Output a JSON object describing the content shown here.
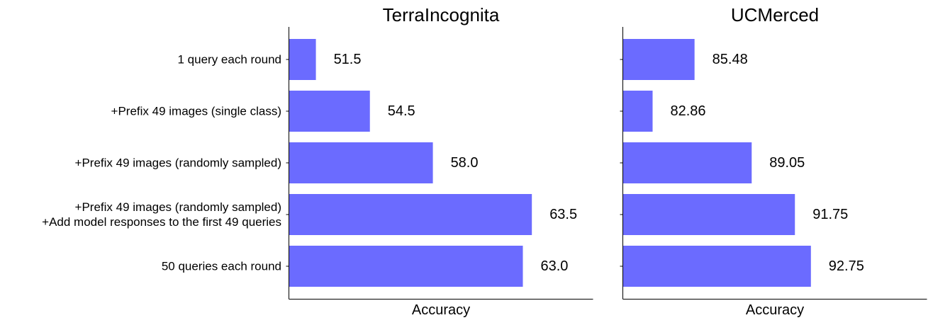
{
  "categories": [
    [
      "1 query each round"
    ],
    [
      "+Prefix 49 images (single class)"
    ],
    [
      "+Prefix 49 images (randomly sampled)"
    ],
    [
      "+Prefix 49 images (randomly sampled)",
      "+Add model responses to the first 49 queries"
    ],
    [
      "50 queries each round"
    ]
  ],
  "bar_color": "#6b6bff",
  "chart_data": [
    {
      "type": "bar",
      "orientation": "horizontal",
      "title": "TerraIncognita",
      "xlabel": "Accuracy",
      "categories": [
        "1 query each round",
        "+Prefix 49 images (single class)",
        "+Prefix 49 images (randomly sampled)",
        "+Prefix 49 images (randomly sampled) +Add model responses to the first 49 queries",
        "50 queries each round"
      ],
      "values": [
        51.5,
        54.5,
        58.0,
        63.5,
        63.0
      ],
      "labels": [
        "51.5",
        "54.5",
        "58.0",
        "63.5",
        "63.0"
      ],
      "xlim": [
        50.0,
        66.9
      ],
      "grid": false
    },
    {
      "type": "bar",
      "orientation": "horizontal",
      "title": "UCMerced",
      "xlabel": "Accuracy",
      "categories": [
        "1 query each round",
        "+Prefix 49 images (single class)",
        "+Prefix 49 images (randomly sampled)",
        "+Prefix 49 images (randomly sampled) +Add model responses to the first 49 queries",
        "50 queries each round"
      ],
      "values": [
        85.48,
        82.86,
        89.05,
        91.75,
        92.75
      ],
      "labels": [
        "85.48",
        "82.86",
        "89.05",
        "91.75",
        "92.75"
      ],
      "xlim": [
        81.0,
        100.0
      ],
      "grid": false
    }
  ]
}
